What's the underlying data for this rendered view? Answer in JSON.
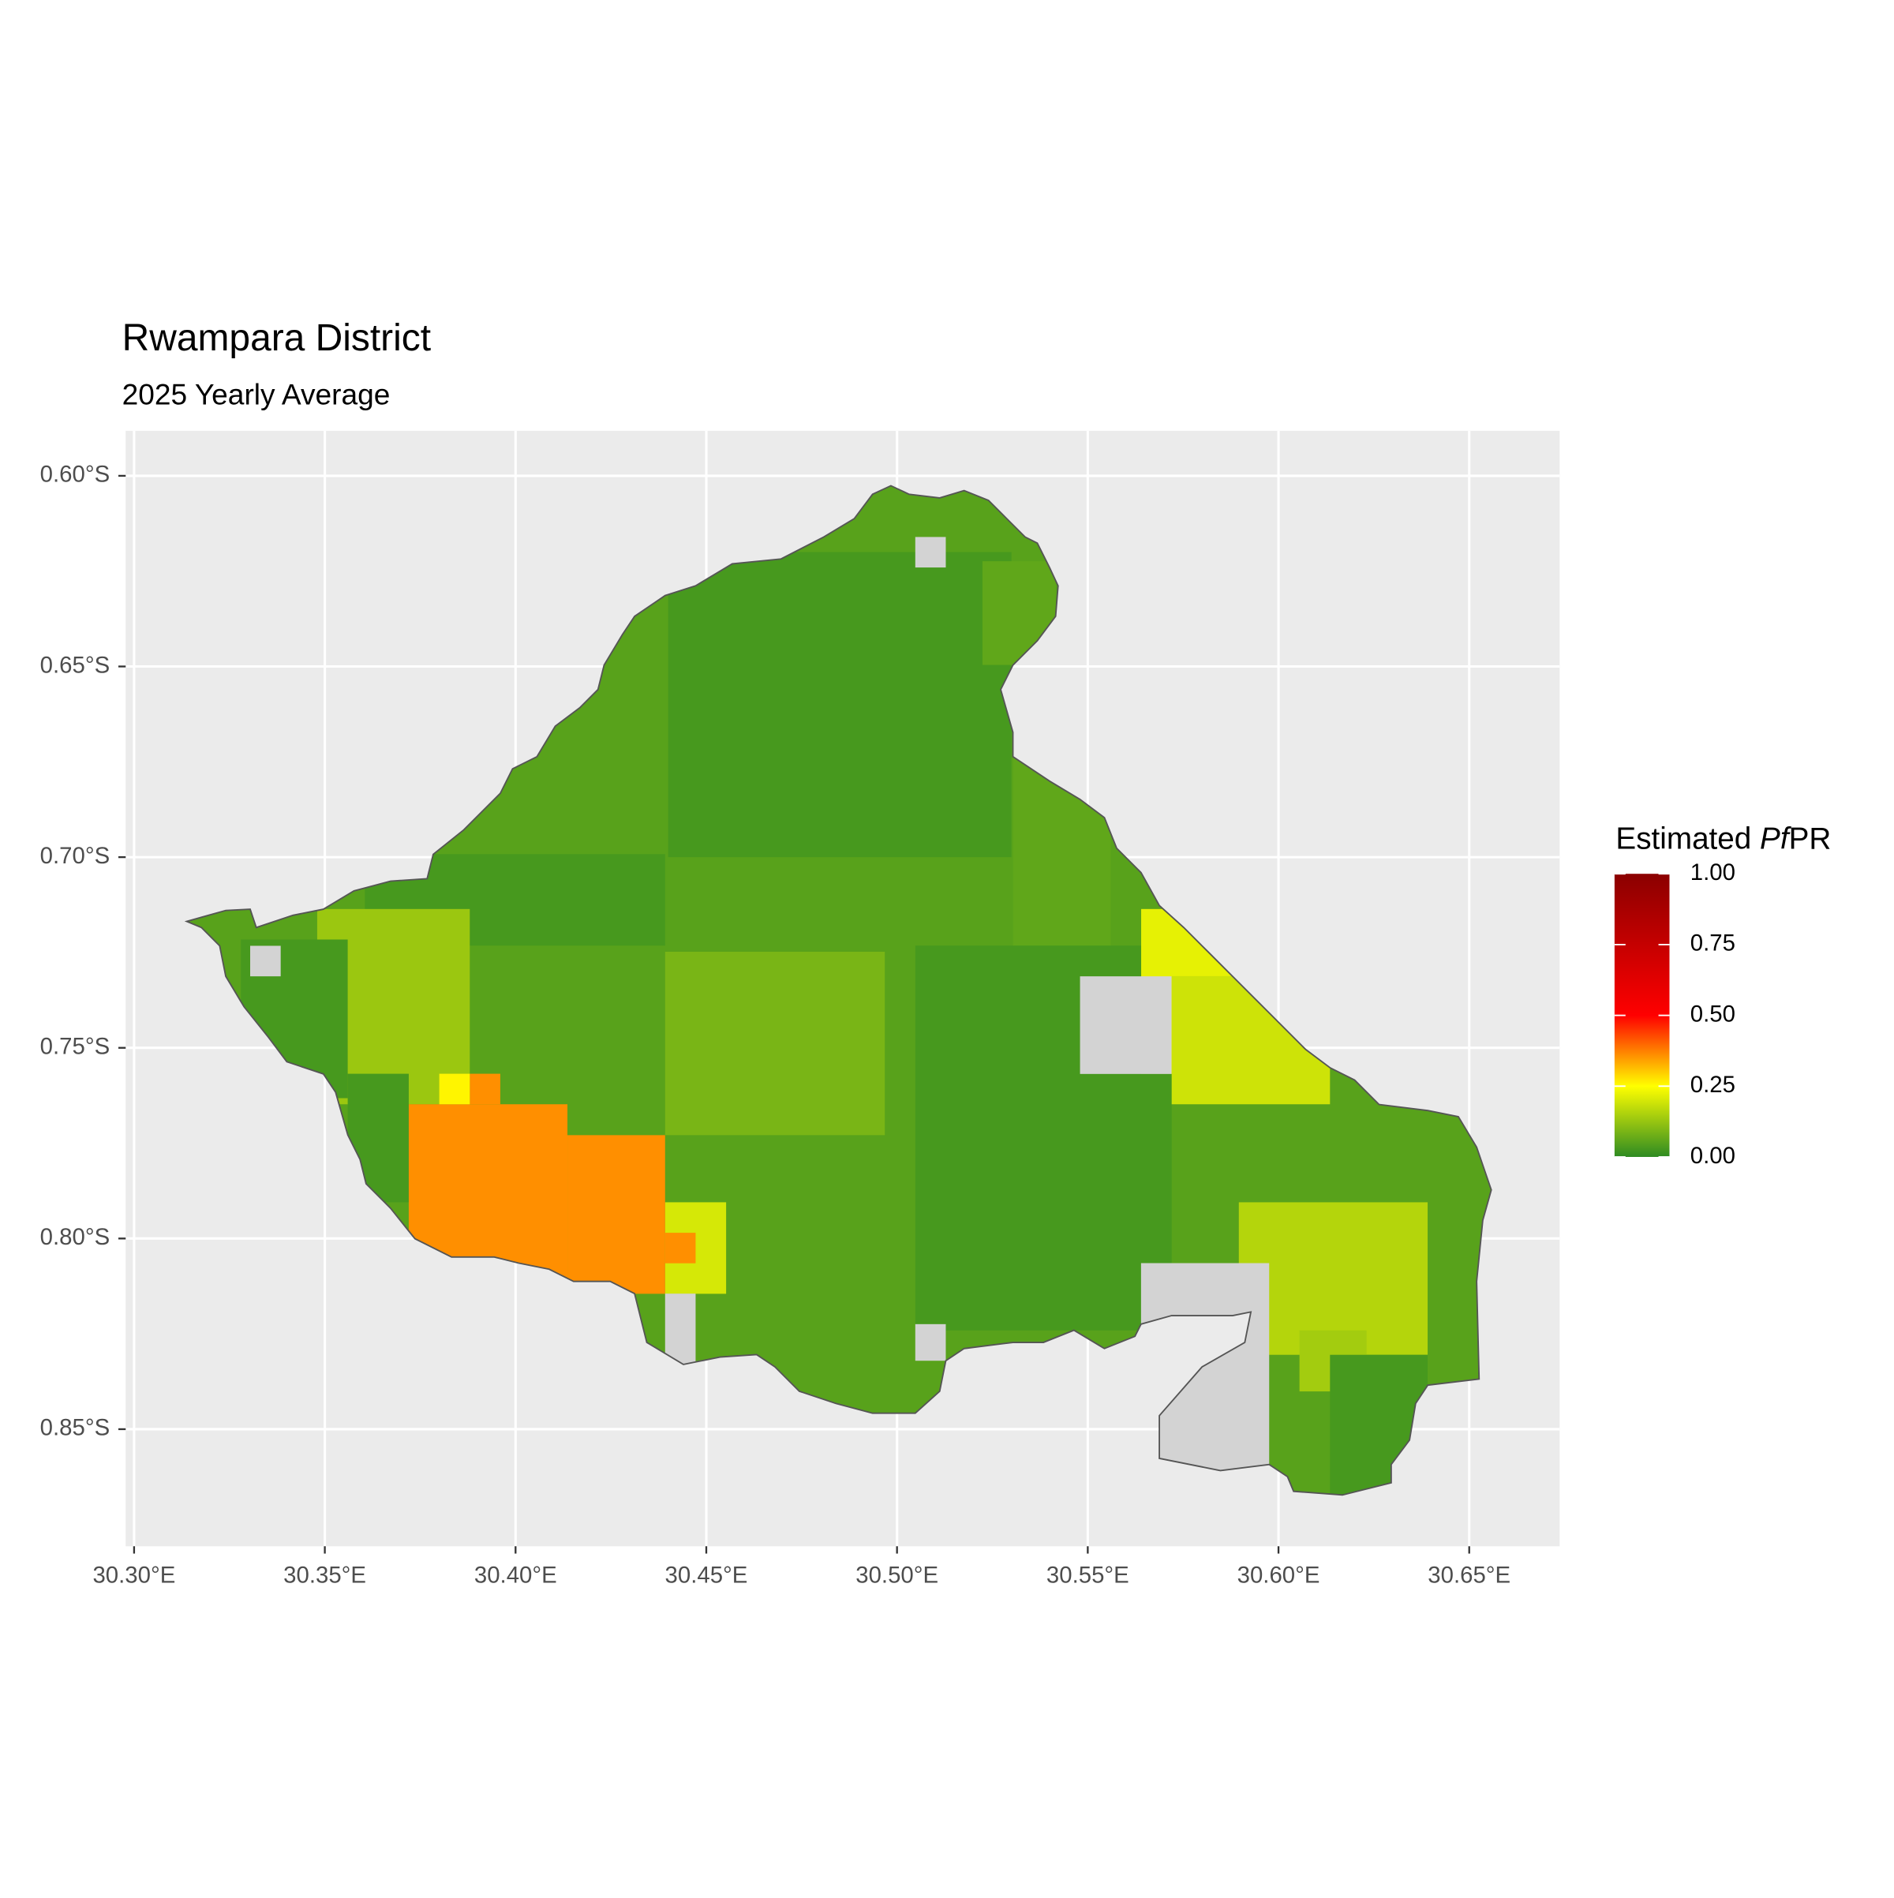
{
  "chart_data": {
    "type": "raster-map",
    "title": "Rwampara District",
    "subtitle": "2025 Yearly Average",
    "xlim": [
      30.2978,
      30.6737
    ],
    "ylim": [
      -0.8807,
      -0.5882
    ],
    "xticks": [
      {
        "value": 30.3,
        "label": "30.30°E"
      },
      {
        "value": 30.35,
        "label": "30.35°E"
      },
      {
        "value": 30.4,
        "label": "30.40°E"
      },
      {
        "value": 30.45,
        "label": "30.45°E"
      },
      {
        "value": 30.5,
        "label": "30.50°E"
      },
      {
        "value": 30.55,
        "label": "30.55°E"
      },
      {
        "value": 30.6,
        "label": "30.60°E"
      },
      {
        "value": 30.65,
        "label": "30.65°E"
      }
    ],
    "yticks": [
      {
        "value": -0.6,
        "label": "0.60°S"
      },
      {
        "value": -0.65,
        "label": "0.65°S"
      },
      {
        "value": -0.7,
        "label": "0.70°S"
      },
      {
        "value": -0.75,
        "label": "0.75°S"
      },
      {
        "value": -0.8,
        "label": "0.80°S"
      },
      {
        "value": -0.85,
        "label": "0.85°S"
      }
    ],
    "grid": true,
    "legend": {
      "title_parts": [
        "Estimated ",
        "Pf",
        "PR"
      ],
      "limits": [
        0,
        1
      ],
      "ticks": [
        {
          "value": 0,
          "label": "0.00"
        },
        {
          "value": 0.25,
          "label": "0.25"
        },
        {
          "value": 0.5,
          "label": "0.50"
        },
        {
          "value": 0.75,
          "label": "0.75"
        },
        {
          "value": 1,
          "label": "1.00"
        }
      ]
    },
    "colorscale": {
      "values": [
        0,
        0.25,
        0.5,
        1
      ],
      "colors": [
        "#2e8b22",
        "#ffff00",
        "#ff0000",
        "#8b0000"
      ]
    },
    "cells": [
      {
        "lon": [
          30.3,
          30.66
        ],
        "lat": [
          -0.6,
          -0.87
        ],
        "value": 0.05
      },
      {
        "lon": [
          30.44,
          30.53
        ],
        "lat": [
          -0.62,
          -0.7
        ],
        "value": 0.03
      },
      {
        "lon": [
          30.3605,
          30.4392
        ],
        "lat": [
          -0.6992,
          -0.7232
        ],
        "value": 0.03
      },
      {
        "lon": [
          30.348,
          30.388
        ],
        "lat": [
          -0.7136,
          -0.7648
        ],
        "value": 0.13
      },
      {
        "lon": [
          30.328,
          30.356
        ],
        "lat": [
          -0.7216,
          -0.7632
        ],
        "value": 0.03
      },
      {
        "lon": [
          30.356,
          30.372
        ],
        "lat": [
          -0.7568,
          -0.7905
        ],
        "value": 0.03
      },
      {
        "lon": [
          30.4392,
          30.4968
        ],
        "lat": [
          -0.7248,
          -0.7729
        ],
        "value": 0.09
      },
      {
        "lon": [
          30.5224,
          30.5416
        ],
        "lat": [
          -0.6224,
          -0.6496
        ],
        "value": 0.06
      },
      {
        "lon": [
          30.5304,
          30.556
        ],
        "lat": [
          -0.6736,
          -0.7232
        ],
        "value": 0.06
      },
      {
        "lon": [
          30.5048,
          30.572
        ],
        "lat": [
          -0.7232,
          -0.8241
        ],
        "value": 0.03
      },
      {
        "lon": [
          30.564,
          30.5975
        ],
        "lat": [
          -0.7136,
          -0.7568
        ],
        "value": 0.22
      },
      {
        "lon": [
          30.572,
          30.6135
        ],
        "lat": [
          -0.7312,
          -0.7648
        ],
        "value": 0.19
      },
      {
        "lon": [
          30.5896,
          30.6391
        ],
        "lat": [
          -0.7905,
          -0.8305
        ],
        "value": 0.16
      },
      {
        "lon": [
          30.6055,
          30.6231
        ],
        "lat": [
          -0.8241,
          -0.8401
        ],
        "value": 0.14
      },
      {
        "lon": [
          30.6135,
          30.6391
        ],
        "lat": [
          -0.8305,
          -0.87
        ],
        "value": 0.03
      },
      {
        "lon": [
          30.4392,
          30.4552
        ],
        "lat": [
          -0.7905,
          -0.8145
        ],
        "value": 0.2
      },
      {
        "lon": [
          30.372,
          30.4136
        ],
        "lat": [
          -0.7648,
          -0.8113
        ],
        "value": 0.36
      },
      {
        "lon": [
          30.4136,
          30.4392
        ],
        "lat": [
          -0.7729,
          -0.8145
        ],
        "value": 0.36
      },
      {
        "lon": [
          30.4392,
          30.4472
        ],
        "lat": [
          -0.7985,
          -0.8065
        ],
        "value": 0.36
      },
      {
        "lon": [
          30.388,
          30.396
        ],
        "lat": [
          -0.7568,
          -0.7648
        ],
        "value": 0.36
      },
      {
        "lon": [
          30.38,
          30.388
        ],
        "lat": [
          -0.7568,
          -0.7648
        ],
        "value": 0.26
      }
    ]
  }
}
